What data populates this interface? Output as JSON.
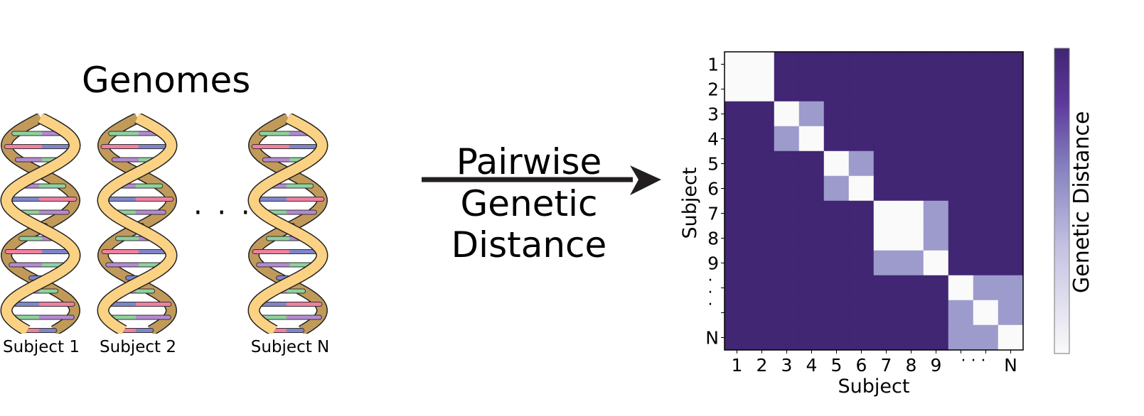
{
  "left_panel": {
    "title": "Genomes",
    "subjects": [
      "Subject 1",
      "Subject 2",
      "Subject N"
    ],
    "ellipsis": "· · ·",
    "dna_icon": "dna-double-helix-icon",
    "colors": {
      "backbone_front": "#fbd283",
      "backbone_back": "#c19a5a",
      "rung_pink": "#f07fa0",
      "rung_green": "#8fd19e",
      "rung_blue": "#7f85c9",
      "rung_purple": "#b48ad0"
    }
  },
  "arrow": {
    "lines": [
      "Pairwise",
      "Genetic",
      "Distance"
    ]
  },
  "chart_data": {
    "type": "heatmap",
    "title": "",
    "xlabel": "Subject",
    "ylabel": "Subject",
    "colorbar_label": "Genetic Distance",
    "x_ticks": [
      "1",
      "2",
      "3",
      "4",
      "5",
      "6",
      "7",
      "8",
      "9",
      "·",
      "·",
      "N"
    ],
    "y_ticks": [
      "1",
      "2",
      "3",
      "4",
      "5",
      "6",
      "7",
      "8",
      "9",
      "·",
      "·",
      "N"
    ],
    "x_ellipsis": "· · ·",
    "y_ellipsis": "·\n·\n·",
    "matrix_levels": [
      [
        0,
        0,
        2,
        2,
        2,
        2,
        2,
        2,
        2,
        2,
        2,
        2
      ],
      [
        0,
        0,
        2,
        2,
        2,
        2,
        2,
        2,
        2,
        2,
        2,
        2
      ],
      [
        2,
        2,
        0,
        1,
        2,
        2,
        2,
        2,
        2,
        2,
        2,
        2
      ],
      [
        2,
        2,
        1,
        0,
        2,
        2,
        2,
        2,
        2,
        2,
        2,
        2
      ],
      [
        2,
        2,
        2,
        2,
        0,
        1,
        2,
        2,
        2,
        2,
        2,
        2
      ],
      [
        2,
        2,
        2,
        2,
        1,
        0,
        2,
        2,
        2,
        2,
        2,
        2
      ],
      [
        2,
        2,
        2,
        2,
        2,
        2,
        0,
        0,
        1,
        2,
        2,
        2
      ],
      [
        2,
        2,
        2,
        2,
        2,
        2,
        0,
        0,
        1,
        2,
        2,
        2
      ],
      [
        2,
        2,
        2,
        2,
        2,
        2,
        1,
        1,
        0,
        2,
        2,
        2
      ],
      [
        2,
        2,
        2,
        2,
        2,
        2,
        2,
        2,
        2,
        0,
        1,
        1
      ],
      [
        2,
        2,
        2,
        2,
        2,
        2,
        2,
        2,
        2,
        1,
        0,
        1
      ],
      [
        2,
        2,
        2,
        2,
        2,
        2,
        2,
        2,
        2,
        1,
        1,
        0
      ]
    ],
    "colors": {
      "low": "#fafafa",
      "mid": "#9d9bcc",
      "high": "#402673"
    }
  }
}
